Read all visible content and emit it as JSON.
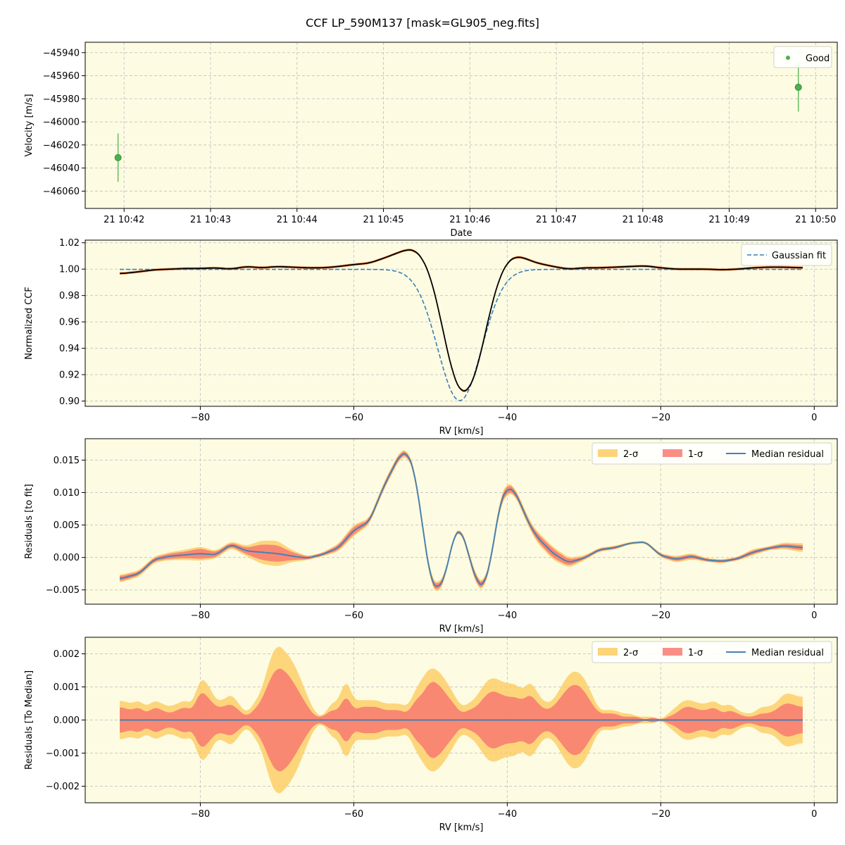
{
  "figure": {
    "title": "CCF LP_590M137 [mask=GL905_neg.fits]",
    "background": "#ffffff",
    "axes_facecolor": "#fdfce2",
    "grid_color": "#c8c8c8"
  },
  "chart_data": [
    {
      "type": "scatter",
      "panel": "velocity",
      "xlabel": "Date",
      "ylabel": "Velocity [m/s]",
      "x_tick_labels": [
        "21 10:42",
        "21 10:43",
        "21 10:44",
        "21 10:45",
        "21 10:46",
        "21 10:47",
        "21 10:48",
        "21 10:49",
        "21 10:50"
      ],
      "xlim_minutes": [
        41.55,
        50.25
      ],
      "ylim": [
        -46075,
        -45931
      ],
      "yticks": [
        -46060,
        -46040,
        -46020,
        -46000,
        -45980,
        -45960,
        -45940
      ],
      "grid": true,
      "legend": {
        "placement": "top-right",
        "entries": [
          {
            "label": "Good",
            "color": "#4caf50"
          }
        ]
      },
      "series": [
        {
          "name": "Good",
          "color": "#4caf50",
          "points": [
            {
              "t": 41.93,
              "y": -46031,
              "err": 21
            },
            {
              "t": 49.8,
              "y": -45970,
              "err": 21
            }
          ]
        }
      ]
    },
    {
      "type": "line",
      "panel": "ccf",
      "xlabel": "RV [km/s]",
      "ylabel": "Normalized CCF",
      "xlim": [
        -95,
        3
      ],
      "ylim": [
        0.896,
        1.022
      ],
      "xticks": [
        -80,
        -60,
        -40,
        -20,
        0
      ],
      "yticks": [
        0.9,
        0.92,
        0.94,
        0.96,
        0.98,
        1.0,
        1.02
      ],
      "grid": true,
      "legend": {
        "placement": "top-right",
        "entries": [
          {
            "label": "Gaussian fit",
            "color": "#3a7fb8",
            "style": "dashed"
          }
        ]
      },
      "rv": [
        -90.5,
        -88,
        -86,
        -84,
        -82,
        -80,
        -78,
        -76,
        -74,
        -72,
        -70,
        -68,
        -66,
        -64,
        -62,
        -60,
        -58,
        -56,
        -54,
        -53,
        -52,
        -51,
        -50,
        -49,
        -48,
        -47,
        -46,
        -45,
        -44,
        -43,
        -42,
        -41,
        -40,
        -39,
        -38,
        -37,
        -36,
        -34,
        -32,
        -30,
        -28,
        -26,
        -24,
        -22,
        -20,
        -18,
        -16,
        -14,
        -12,
        -10,
        -8,
        -6,
        -4,
        -1.5
      ],
      "observed": [
        0.9965,
        0.998,
        0.9995,
        1.0,
        1.0005,
        1.0005,
        1.001,
        1.0,
        1.002,
        1.001,
        1.002,
        1.0015,
        1.001,
        1.001,
        1.002,
        1.0035,
        1.0045,
        1.0085,
        1.013,
        1.015,
        1.0145,
        1.008,
        0.9945,
        0.971,
        0.943,
        0.918,
        0.9055,
        0.908,
        0.9225,
        0.948,
        0.974,
        0.994,
        1.0055,
        1.0095,
        1.009,
        1.0065,
        1.0045,
        1.002,
        1.0,
        1.001,
        1.001,
        1.0015,
        1.002,
        1.0025,
        1.001,
        1.0,
        1.0,
        1.0,
        0.9995,
        1.0,
        1.001,
        1.0015,
        1.0015,
        1.001
      ],
      "gaussian_center": -46.2,
      "gaussian_depth": 0.0995,
      "gaussian_sigma": 2.85,
      "gaussian_baseline": 0.9998
    },
    {
      "type": "area",
      "panel": "residuals-to-fit",
      "xlabel": "RV [km/s]",
      "ylabel": "Residuals [to fit]",
      "xlim": [
        -95,
        3
      ],
      "ylim": [
        -0.0072,
        0.0183
      ],
      "xticks": [
        -80,
        -60,
        -40,
        -20,
        0
      ],
      "yticks": [
        -0.005,
        0.0,
        0.005,
        0.01,
        0.015
      ],
      "ytick_labels": [
        "−0.005",
        "0.000",
        "0.005",
        "0.010",
        "0.015"
      ],
      "grid": true,
      "legend": {
        "placement": "top-right",
        "entries": [
          {
            "label": "2-σ",
            "color": "#fcc95a"
          },
          {
            "label": "1-σ",
            "color": "#f87a72"
          },
          {
            "label": "Median residual",
            "color": "#4a80b0"
          }
        ]
      },
      "rv": [
        -90.5,
        -88,
        -86,
        -84,
        -82,
        -80,
        -78,
        -76,
        -74,
        -72,
        -70,
        -68,
        -66,
        -64,
        -62,
        -60,
        -58,
        -56,
        -54,
        -53,
        -52,
        -51,
        -50,
        -49,
        -48,
        -47,
        -46,
        -45,
        -44,
        -43,
        -42,
        -41,
        -40,
        -39,
        -38,
        -37,
        -36,
        -34,
        -32,
        -30,
        -28,
        -26,
        -24,
        -22,
        -20,
        -18,
        -16,
        -14,
        -12,
        -10,
        -8,
        -6,
        -4,
        -1.5
      ],
      "median": [
        -0.0033,
        -0.0025,
        -0.0003,
        0.0002,
        0.0004,
        0.0006,
        0.0004,
        0.002,
        0.001,
        0.0008,
        0.0006,
        0.0002,
        -0.0001,
        0.0005,
        0.0015,
        0.0042,
        0.0055,
        0.0112,
        0.0158,
        0.0162,
        0.0128,
        0.0045,
        -0.0035,
        -0.005,
        -0.0025,
        0.0033,
        0.0044,
        0.0003,
        -0.0038,
        -0.0045,
        0.0005,
        0.0082,
        0.0108,
        0.0102,
        0.0075,
        0.0048,
        0.003,
        0.0006,
        -0.0008,
        -0.0001,
        0.0012,
        0.0015,
        0.0022,
        0.0024,
        0.0003,
        -0.0003,
        0.0002,
        -0.0004,
        -0.0006,
        -0.0002,
        0.0008,
        0.0014,
        0.0018,
        0.0015
      ],
      "sigma1": [
        0.0004,
        0.0003,
        0.0003,
        0.0004,
        0.0005,
        0.0008,
        0.0004,
        0.0003,
        0.0005,
        0.0012,
        0.0013,
        0.0006,
        0.0002,
        0.0002,
        0.0004,
        0.0006,
        0.0003,
        0.0004,
        0.0004,
        0.0003,
        0.0004,
        0.0004,
        0.0004,
        0.0005,
        0.0003,
        0.0002,
        0.0002,
        0.0004,
        0.0005,
        0.0004,
        0.0004,
        0.0005,
        0.0006,
        0.0004,
        0.0004,
        0.0004,
        0.0006,
        0.0007,
        0.0005,
        0.0002,
        0.0002,
        0.0002,
        0.0001,
        0.0001,
        0.0002,
        0.0003,
        0.0003,
        0.0002,
        0.0002,
        0.0002,
        0.0003,
        0.0002,
        0.0003,
        0.0004
      ],
      "sigma2": [
        0.0006,
        0.0005,
        0.0005,
        0.0006,
        0.0008,
        0.0011,
        0.0006,
        0.0005,
        0.0008,
        0.0018,
        0.002,
        0.0009,
        0.0003,
        0.0003,
        0.0006,
        0.0009,
        0.0005,
        0.0006,
        0.0006,
        0.0005,
        0.0006,
        0.0006,
        0.0007,
        0.0008,
        0.0005,
        0.0003,
        0.0003,
        0.0006,
        0.0008,
        0.0006,
        0.0006,
        0.0008,
        0.0009,
        0.0006,
        0.0007,
        0.0007,
        0.0009,
        0.001,
        0.0008,
        0.0004,
        0.0003,
        0.0003,
        0.0002,
        0.0002,
        0.0003,
        0.0005,
        0.0005,
        0.0003,
        0.0003,
        0.0003,
        0.0005,
        0.0003,
        0.0005,
        0.0007
      ]
    },
    {
      "type": "area",
      "panel": "residuals-to-median",
      "xlabel": "RV [km/s]",
      "ylabel": "Residuals [To Median]",
      "xlim": [
        -95,
        3
      ],
      "ylim": [
        -0.0025,
        0.0025
      ],
      "xticks": [
        -80,
        -60,
        -40,
        -20,
        0
      ],
      "yticks": [
        -0.002,
        -0.001,
        0.0,
        0.001,
        0.002
      ],
      "ytick_labels": [
        "−0.002",
        "−0.001",
        "0.000",
        "0.001",
        "0.002"
      ],
      "grid": true,
      "legend": {
        "placement": "top-right",
        "entries": [
          {
            "label": "2-σ",
            "color": "#fcc95a"
          },
          {
            "label": "1-σ",
            "color": "#f87a72"
          },
          {
            "label": "Median residual",
            "color": "#4a80b0"
          }
        ]
      },
      "rv": [
        -90.5,
        -89,
        -88,
        -87,
        -86,
        -85,
        -84,
        -83,
        -82,
        -81,
        -80,
        -79,
        -78,
        -77,
        -76,
        -75,
        -74,
        -73,
        -72,
        -71,
        -70,
        -69,
        -68,
        -67,
        -66,
        -65,
        -64,
        -63,
        -62,
        -61,
        -60,
        -59,
        -58,
        -57,
        -56,
        -55,
        -54,
        -53,
        -52,
        -51,
        -50,
        -49,
        -48,
        -47,
        -46,
        -45,
        -44,
        -43,
        -42,
        -41,
        -40,
        -39,
        -38,
        -37,
        -36,
        -35,
        -34,
        -33,
        -32,
        -31,
        -30,
        -29,
        -28,
        -27,
        -26,
        -25,
        -24,
        -23,
        -22,
        -21,
        -20,
        -19,
        -18,
        -17,
        -16,
        -15,
        -14,
        -13,
        -12,
        -11,
        -10,
        -9,
        -8,
        -7,
        -6,
        -5,
        -4,
        -3,
        -2,
        -1.5
      ],
      "sigma1": [
        0.0004,
        0.0003,
        0.0004,
        0.0002,
        0.0004,
        0.0003,
        0.0002,
        0.0003,
        0.0004,
        0.0003,
        0.0009,
        0.0007,
        0.0004,
        0.0004,
        0.0005,
        0.0003,
        0.0001,
        0.0003,
        0.0006,
        0.0012,
        0.0016,
        0.0015,
        0.0012,
        0.0008,
        0.0004,
        0.0001,
        0.0001,
        0.0003,
        0.0003,
        0.0008,
        0.0003,
        0.0004,
        0.0004,
        0.0004,
        0.0003,
        0.0003,
        0.0003,
        0.0002,
        0.0006,
        0.0008,
        0.0012,
        0.0011,
        0.0008,
        0.0005,
        0.0002,
        0.0003,
        0.0004,
        0.0007,
        0.0009,
        0.0008,
        0.0007,
        0.0007,
        0.0006,
        0.0008,
        0.0005,
        0.0003,
        0.0004,
        0.0007,
        0.001,
        0.0011,
        0.0009,
        0.0005,
        0.0002,
        0.0002,
        0.0002,
        0.0001,
        0.0001,
        0.0001,
        0.0,
        0.0001,
        0.0,
        0.0001,
        0.0002,
        0.0004,
        0.0004,
        0.0003,
        0.0003,
        0.0004,
        0.0002,
        0.0003,
        0.0002,
        0.0001,
        0.0001,
        0.0002,
        0.0002,
        0.0003,
        0.0005,
        0.0005,
        0.0004,
        0.0004
      ],
      "sigma2": [
        0.0006,
        0.0005,
        0.0006,
        0.0004,
        0.0006,
        0.0005,
        0.0004,
        0.0005,
        0.0006,
        0.0005,
        0.0013,
        0.0011,
        0.0006,
        0.0006,
        0.0008,
        0.0005,
        0.0002,
        0.0005,
        0.0009,
        0.0018,
        0.0023,
        0.0021,
        0.0018,
        0.0013,
        0.0007,
        0.0002,
        0.0001,
        0.0005,
        0.0006,
        0.0013,
        0.0006,
        0.0006,
        0.0006,
        0.0006,
        0.0005,
        0.0005,
        0.0005,
        0.0004,
        0.0009,
        0.0013,
        0.0016,
        0.0015,
        0.0012,
        0.0008,
        0.0004,
        0.0005,
        0.0007,
        0.0011,
        0.0013,
        0.0012,
        0.0011,
        0.0011,
        0.0009,
        0.0012,
        0.0008,
        0.0005,
        0.0006,
        0.001,
        0.0014,
        0.0015,
        0.0013,
        0.0008,
        0.0003,
        0.0003,
        0.0003,
        0.0002,
        0.0002,
        0.0001,
        0.0001,
        0.0001,
        0.0,
        0.0002,
        0.0004,
        0.0006,
        0.0006,
        0.0005,
        0.0005,
        0.0006,
        0.0004,
        0.0005,
        0.0003,
        0.0002,
        0.0002,
        0.0004,
        0.0004,
        0.0005,
        0.0008,
        0.0008,
        0.0007,
        0.0007
      ]
    }
  ]
}
